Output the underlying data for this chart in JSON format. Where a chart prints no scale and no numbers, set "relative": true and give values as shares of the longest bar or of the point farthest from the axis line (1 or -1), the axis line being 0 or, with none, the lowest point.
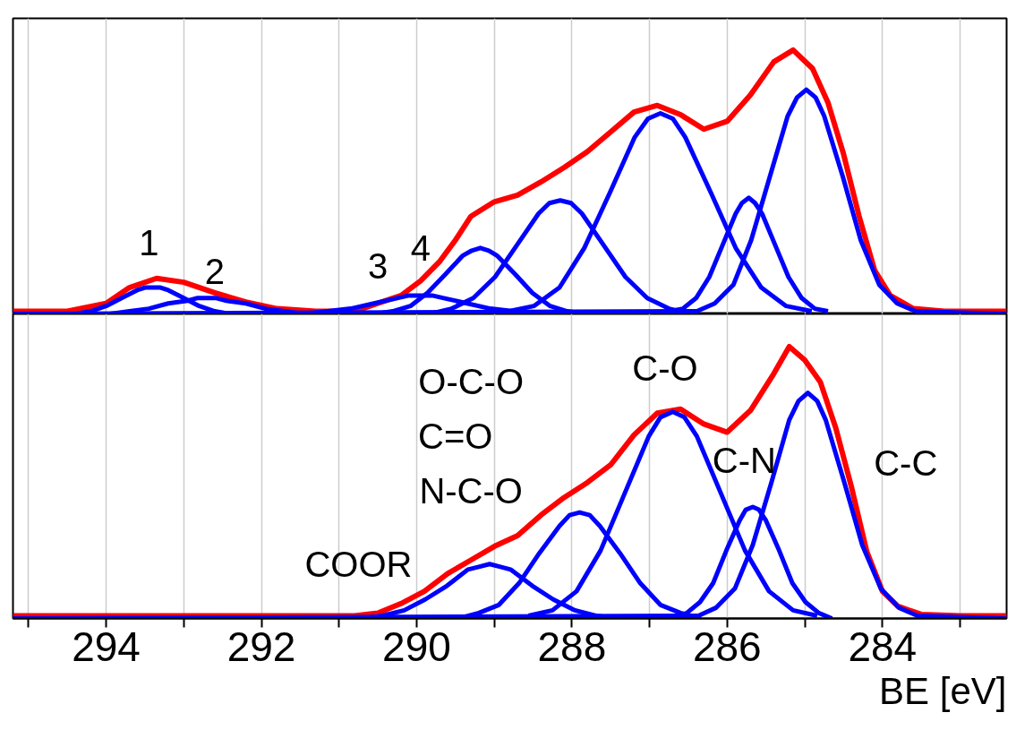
{
  "chart_data": [
    {
      "type": "line",
      "relative": true,
      "grid": "x",
      "tick_labels": false,
      "xlim": [
        295.2,
        282.4
      ],
      "xticks": [
        {
          "value": 295,
          "label": null
        },
        294,
        {
          "value": 293,
          "label": null
        },
        292,
        {
          "value": 291,
          "label": null
        },
        290,
        {
          "value": 289,
          "label": null
        },
        288,
        {
          "value": 287,
          "label": null
        },
        286,
        {
          "value": 285,
          "label": null
        },
        284,
        {
          "value": 283,
          "label": null
        }
      ],
      "annotations": [
        "1",
        "2",
        "3",
        "4"
      ],
      "series": [
        {
          "color": "#ff0000",
          "x": [
            295.2,
            295.0,
            294.5,
            294.0,
            293.7,
            293.35,
            293.0,
            292.6,
            292.2,
            291.8,
            291.3,
            290.8,
            290.5,
            290.2,
            289.95,
            289.7,
            289.5,
            289.3,
            289.0,
            288.7,
            288.4,
            288.1,
            287.8,
            287.5,
            287.2,
            286.9,
            286.6,
            286.3,
            286.0,
            285.7,
            285.4,
            285.15,
            284.9,
            284.7,
            284.5,
            284.3,
            284.1,
            283.9,
            283.6,
            283.2,
            282.8,
            282.4
          ],
          "values": [
            0.01,
            0.01,
            0.01,
            0.04,
            0.1,
            0.135,
            0.12,
            0.08,
            0.045,
            0.02,
            0.01,
            0.01,
            0.04,
            0.07,
            0.125,
            0.2,
            0.28,
            0.37,
            0.425,
            0.45,
            0.5,
            0.555,
            0.615,
            0.69,
            0.765,
            0.79,
            0.755,
            0.7,
            0.73,
            0.83,
            0.955,
            1.0,
            0.93,
            0.8,
            0.605,
            0.37,
            0.165,
            0.07,
            0.02,
            0.01,
            0.01,
            0.01
          ]
        },
        {
          "color": "#0000ff",
          "x": [
            295.2,
            286.39,
            286.16,
            285.92,
            285.69,
            285.45,
            285.22,
            285.1,
            284.98,
            284.86,
            284.75,
            284.51,
            284.28,
            284.04,
            283.81,
            283.57,
            282.4
          ],
          "values": [
            0,
            0.01,
            0.04,
            0.11,
            0.28,
            0.52,
            0.75,
            0.82,
            0.85,
            0.82,
            0.75,
            0.52,
            0.28,
            0.11,
            0.04,
            0.01,
            0
          ]
        },
        {
          "color": "#0000ff",
          "x": [
            286.74,
            286.57,
            286.4,
            286.23,
            286.06,
            285.89,
            285.81,
            285.72,
            285.64,
            285.55,
            285.38,
            285.21,
            285.04,
            284.87,
            284.7
          ],
          "values": [
            0.01,
            0.02,
            0.06,
            0.14,
            0.26,
            0.38,
            0.42,
            0.44,
            0.42,
            0.38,
            0.26,
            0.14,
            0.06,
            0.02,
            0.01
          ]
        },
        {
          "color": "#0000ff",
          "x": [
            288.81,
            288.49,
            288.16,
            287.84,
            287.51,
            287.19,
            287.02,
            286.86,
            286.7,
            286.54,
            286.21,
            285.89,
            285.56,
            285.24,
            284.91
          ],
          "values": [
            0.01,
            0.03,
            0.1,
            0.25,
            0.46,
            0.67,
            0.74,
            0.76,
            0.74,
            0.67,
            0.46,
            0.25,
            0.1,
            0.03,
            0.01
          ]
        },
        {
          "color": "#0000ff",
          "x": [
            289.83,
            289.55,
            289.27,
            288.99,
            288.71,
            288.43,
            288.29,
            288.15,
            288.01,
            287.87,
            287.59,
            287.31,
            287.03,
            286.75,
            286.47
          ],
          "values": [
            0.0,
            0.02,
            0.06,
            0.14,
            0.26,
            0.38,
            0.42,
            0.43,
            0.42,
            0.38,
            0.26,
            0.14,
            0.06,
            0.02,
            0.0
          ]
        },
        {
          "color": "#0000ff",
          "x": [
            290.53,
            290.31,
            290.08,
            289.86,
            289.63,
            289.41,
            289.29,
            289.18,
            289.07,
            288.96,
            288.73,
            288.51,
            288.28,
            288.06,
            287.83
          ],
          "values": [
            0.0,
            0.01,
            0.03,
            0.08,
            0.15,
            0.22,
            0.24,
            0.25,
            0.24,
            0.22,
            0.15,
            0.08,
            0.03,
            0.01,
            0.0
          ]
        },
        {
          "color": "#0000ff",
          "x": [
            291.75,
            291.45,
            291.15,
            290.85,
            290.55,
            290.25,
            290.1,
            289.95,
            289.8,
            289.65,
            289.35,
            289.05,
            288.75,
            288.45,
            288.15
          ],
          "values": [
            0.0,
            0.0,
            0.01,
            0.02,
            0.04,
            0.06,
            0.07,
            0.07,
            0.07,
            0.06,
            0.04,
            0.02,
            0.01,
            0.0,
            0.0
          ]
        },
        {
          "color": "#0000ff",
          "x": [
            294.2,
            293.95,
            293.7,
            293.45,
            293.2,
            292.95,
            292.83,
            292.7,
            292.58,
            292.45,
            292.2,
            291.95,
            291.7,
            291.45,
            291.2
          ],
          "values": [
            0.0,
            0.0,
            0.01,
            0.02,
            0.04,
            0.05,
            0.06,
            0.06,
            0.06,
            0.05,
            0.04,
            0.02,
            0.01,
            0.0,
            0.0
          ]
        },
        {
          "color": "#0000ff",
          "x": [
            294.6,
            294.4,
            294.2,
            294.0,
            293.8,
            293.6,
            293.5,
            293.4,
            293.3,
            293.2,
            293.0,
            292.8,
            292.6,
            292.4,
            292.2
          ],
          "values": [
            0.0,
            0.0,
            0.01,
            0.03,
            0.06,
            0.09,
            0.1,
            0.1,
            0.1,
            0.09,
            0.06,
            0.03,
            0.01,
            0.0,
            0.0
          ]
        }
      ]
    },
    {
      "type": "line",
      "relative": true,
      "grid": "x",
      "tick_labels": "x",
      "xlabel": "BE [eV]",
      "xlim": [
        295.2,
        282.4
      ],
      "xticks": [
        {
          "value": 295,
          "label": null
        },
        294,
        {
          "value": 293,
          "label": null
        },
        292,
        {
          "value": 291,
          "label": null
        },
        290,
        {
          "value": 289,
          "label": null
        },
        288,
        {
          "value": 287,
          "label": null
        },
        286,
        {
          "value": 285,
          "label": null
        },
        284,
        {
          "value": 283,
          "label": null
        }
      ],
      "annotations": [
        "C-C",
        "C-N",
        "C-O",
        "O-C-O",
        "C=O",
        "N-C-O",
        "COOR"
      ],
      "series": [
        {
          "color": "#ff0000",
          "x": [
            295.2,
            294.0,
            293.0,
            292.0,
            291.0,
            290.8,
            290.5,
            290.2,
            289.9,
            289.6,
            289.3,
            289.0,
            288.7,
            288.4,
            288.1,
            287.8,
            287.5,
            287.2,
            286.9,
            286.6,
            286.3,
            286.0,
            285.7,
            285.4,
            285.2,
            285.0,
            284.8,
            284.6,
            284.4,
            284.2,
            284.0,
            283.8,
            283.5,
            283.0,
            282.4
          ],
          "values": [
            0.01,
            0.01,
            0.01,
            0.01,
            0.01,
            0.01,
            0.02,
            0.055,
            0.1,
            0.165,
            0.215,
            0.265,
            0.305,
            0.38,
            0.445,
            0.5,
            0.565,
            0.675,
            0.755,
            0.77,
            0.715,
            0.685,
            0.765,
            0.9,
            1.0,
            0.95,
            0.87,
            0.7,
            0.485,
            0.245,
            0.1,
            0.045,
            0.015,
            0.01,
            0.01
          ]
        },
        {
          "color": "#0000ff",
          "x": [
            295.2,
            286.37,
            286.14,
            285.9,
            285.67,
            285.43,
            285.2,
            285.08,
            284.96,
            284.84,
            284.73,
            284.49,
            284.26,
            284.02,
            283.79,
            283.55,
            282.4
          ],
          "values": [
            0,
            0.01,
            0.04,
            0.11,
            0.27,
            0.5,
            0.73,
            0.8,
            0.83,
            0.8,
            0.73,
            0.5,
            0.27,
            0.11,
            0.04,
            0.01,
            0
          ]
        },
        {
          "color": "#0000ff",
          "x": [
            286.69,
            286.52,
            286.35,
            286.18,
            286.01,
            285.84,
            285.76,
            285.67,
            285.59,
            285.5,
            285.33,
            285.16,
            284.99,
            284.82,
            284.65
          ],
          "values": [
            0.0,
            0.02,
            0.06,
            0.13,
            0.25,
            0.36,
            0.4,
            0.41,
            0.4,
            0.36,
            0.25,
            0.13,
            0.06,
            0.02,
            0.0
          ]
        },
        {
          "color": "#0000ff",
          "x": [
            288.56,
            288.25,
            287.94,
            287.63,
            287.32,
            287.01,
            286.86,
            286.7,
            286.55,
            286.39,
            286.08,
            285.77,
            285.46,
            285.15,
            284.84
          ],
          "values": [
            0.01,
            0.03,
            0.1,
            0.25,
            0.46,
            0.67,
            0.74,
            0.76,
            0.74,
            0.67,
            0.46,
            0.25,
            0.1,
            0.03,
            0.01
          ]
        },
        {
          "color": "#0000ff",
          "x": [
            289.46,
            289.2,
            288.94,
            288.68,
            288.42,
            288.16,
            288.03,
            287.9,
            287.77,
            287.64,
            287.38,
            287.12,
            286.86,
            286.6,
            286.34
          ],
          "values": [
            0.0,
            0.02,
            0.05,
            0.13,
            0.24,
            0.34,
            0.38,
            0.39,
            0.38,
            0.34,
            0.24,
            0.13,
            0.05,
            0.02,
            0.0
          ]
        },
        {
          "color": "#0000ff",
          "x": [
            290.71,
            290.44,
            290.16,
            289.89,
            289.61,
            289.34,
            289.2,
            289.06,
            288.92,
            288.79,
            288.51,
            288.24,
            287.96,
            287.69,
            287.41
          ],
          "values": [
            0.0,
            0.01,
            0.03,
            0.07,
            0.12,
            0.18,
            0.19,
            0.2,
            0.19,
            0.18,
            0.12,
            0.07,
            0.03,
            0.01,
            0.0
          ]
        }
      ]
    }
  ]
}
